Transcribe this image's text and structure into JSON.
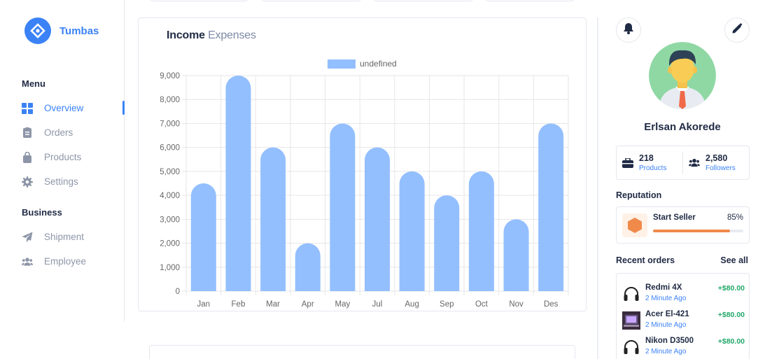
{
  "brand": {
    "name": "Tumbas"
  },
  "sidebar": {
    "menu_title": "Menu",
    "menu_items": [
      {
        "label": "Overview",
        "icon": "grid-icon",
        "active": true
      },
      {
        "label": "Orders",
        "icon": "clipboard-icon",
        "active": false
      },
      {
        "label": "Products",
        "icon": "shopping-bag-icon",
        "active": false
      },
      {
        "label": "Settings",
        "icon": "gear-icon",
        "active": false
      }
    ],
    "business_title": "Business",
    "business_items": [
      {
        "label": "Shipment",
        "icon": "paper-plane-icon"
      },
      {
        "label": "Employee",
        "icon": "users-icon"
      }
    ]
  },
  "chart_card": {
    "title_main": "Income",
    "title_secondary": "Expenses"
  },
  "chart_data": {
    "type": "bar",
    "categories": [
      "Jan",
      "Feb",
      "Mar",
      "Apr",
      "May",
      "Jul",
      "Aug",
      "Sep",
      "Oct",
      "Nov",
      "Des"
    ],
    "series": [
      {
        "name": "undefined",
        "values": [
          4500,
          9000,
          6000,
          2000,
          7000,
          6000,
          5000,
          4000,
          5000,
          3000,
          7000
        ]
      }
    ],
    "ylim": [
      0,
      9000
    ],
    "yticks": [
      "0",
      "1,000",
      "2,000",
      "3,000",
      "4,000",
      "5,000",
      "6,000",
      "7,000",
      "8,000",
      "9,000"
    ],
    "grid": true,
    "legend_position": "top",
    "bar_color": "#93bffe"
  },
  "profile": {
    "name": "Erlsan Akorede",
    "stats": [
      {
        "value": "218",
        "label": "Products",
        "icon": "briefcase-icon"
      },
      {
        "value": "2,580",
        "label": "Followers",
        "icon": "users-icon"
      }
    ]
  },
  "reputation": {
    "title": "Reputation",
    "label": "Start Seller",
    "percent_text": "85%",
    "progress": 0.85
  },
  "orders": {
    "title": "Recent orders",
    "see_all": "See all",
    "items": [
      {
        "name": "Redmi 4X",
        "time": "2 Minute Ago",
        "amount": "+$80.00",
        "icon": "headphones-icon"
      },
      {
        "name": "Acer El-421",
        "time": "2 Minute Ago",
        "amount": "+$80.00",
        "icon": "laptop-photo-icon"
      },
      {
        "name": "Nikon D3500",
        "time": "2 Minute Ago",
        "amount": "+$80.00",
        "icon": "headphones-icon"
      }
    ]
  },
  "colors": {
    "accent": "#3b82f6",
    "bar": "#93bffe",
    "positive": "#22a86a",
    "progress": "#f08a4b"
  }
}
